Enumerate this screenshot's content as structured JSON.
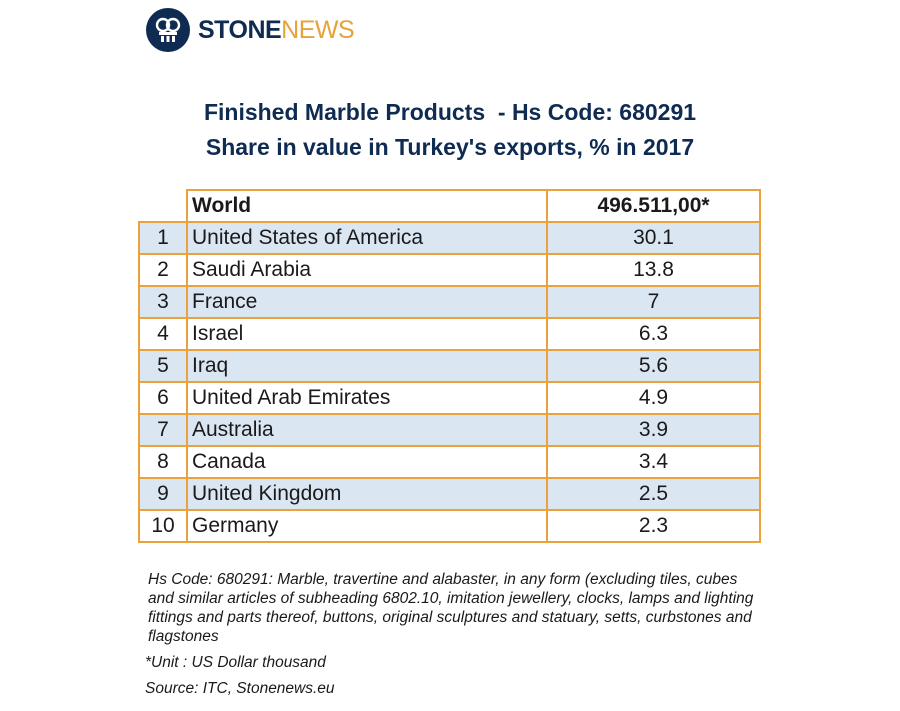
{
  "brand": {
    "name_part1": "STONE",
    "name_part2": "NEWS",
    "primary_color": "#0f2b52",
    "accent_color": "#e8a23a",
    "icon": "stonenews-logo-icon"
  },
  "chart_data": {
    "type": "table",
    "title_line1": "Finished Marble Products  - Hs Code: 680291",
    "title_line2": "Share in value in Turkey's exports, % in 2017",
    "header": {
      "country": "World",
      "value": "496.511,00*"
    },
    "rows": [
      {
        "rank": "1",
        "country": "United States of America",
        "value": "30.1"
      },
      {
        "rank": "2",
        "country": "Saudi Arabia",
        "value": "13.8"
      },
      {
        "rank": "3",
        "country": "France",
        "value": "7"
      },
      {
        "rank": "4",
        "country": "Israel",
        "value": "6.3"
      },
      {
        "rank": "5",
        "country": "Iraq",
        "value": "5.6"
      },
      {
        "rank": "6",
        "country": "United Arab Emirates",
        "value": "4.9"
      },
      {
        "rank": "7",
        "country": "Australia",
        "value": "3.9"
      },
      {
        "rank": "8",
        "country": "Canada",
        "value": "3.4"
      },
      {
        "rank": "9",
        "country": "United Kingdom",
        "value": "2.5"
      },
      {
        "rank": "10",
        "country": "Germany",
        "value": "2.3"
      }
    ],
    "border_color": "#eba23c",
    "stripe_color": "#dbe6f3"
  },
  "notes": {
    "definition": " Hs Code: 680291: Marble, travertine and alabaster, in any form (excluding tiles, cubes and similar articles of subheading 6802.10, imitation jewellery, clocks, lamps and lighting fittings and parts thereof, buttons, original sculptures and statuary, setts, curbstones and flagstones",
    "unit": "*Unit : US Dollar thousand",
    "source": "Source: ITC, Stonenews.eu"
  }
}
